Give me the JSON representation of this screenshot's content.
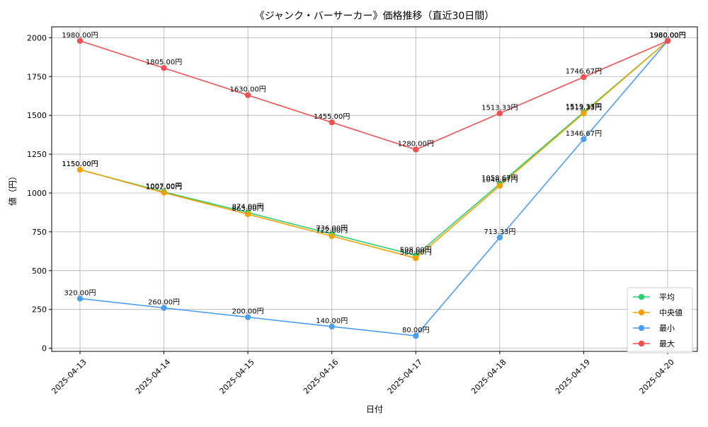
{
  "chart_data": {
    "type": "line",
    "title": "《ジャンク・バーサーカー》価格推移（直近30日間）",
    "xlabel": "日付",
    "ylabel": "値（円）",
    "categories": [
      "2025-04-13",
      "2025-04-14",
      "2025-04-15",
      "2025-04-16",
      "2025-04-17",
      "2025-04-18",
      "2025-04-19",
      "2025-04-20"
    ],
    "ylim": [
      -20,
      2070
    ],
    "yticks": [
      0,
      250,
      500,
      750,
      1000,
      1250,
      1500,
      1750,
      2000
    ],
    "grid": true,
    "legend_position": "bottom-right",
    "value_suffix": "円",
    "series": [
      {
        "name": "平均",
        "color": "#2ecc71",
        "values": [
          1150.0,
          1007.0,
          874.0,
          736.0,
          598.0,
          1058.67,
          1519.33,
          1980.0
        ],
        "labels": [
          "1150.00円",
          "1007.00円",
          "874.00円",
          "736.00円",
          "598.00円",
          "1058.67円",
          "1519.33円",
          "1980.00円"
        ]
      },
      {
        "name": "中央値",
        "color": "#f5a200",
        "values": [
          1150.0,
          1002.0,
          863.0,
          722.0,
          580.0,
          1046.67,
          1513.33,
          1980.0
        ],
        "labels": [
          "1150.00円",
          "1002.00円",
          "863.00円",
          "722.00円",
          "580.00円",
          "1046.67円",
          "1513.33円",
          "1980.00円"
        ]
      },
      {
        "name": "最小",
        "color": "#4a9df0",
        "values": [
          320.0,
          260.0,
          200.0,
          140.0,
          80.0,
          713.33,
          1346.67,
          1980.0
        ],
        "labels": [
          "320.00円",
          "260.00円",
          "200.00円",
          "140.00円",
          "80.00円",
          "713.33円",
          "1346.67円",
          "1980.00円"
        ]
      },
      {
        "name": "最大",
        "color": "#f05050",
        "values": [
          1980.0,
          1805.0,
          1630.0,
          1455.0,
          1280.0,
          1513.33,
          1746.67,
          1980.0
        ],
        "labels": [
          "1980.00円",
          "1805.00円",
          "1630.00円",
          "1455.00円",
          "1280.00円",
          "1513.33円",
          "1746.67円",
          "1980.00円"
        ]
      }
    ]
  }
}
